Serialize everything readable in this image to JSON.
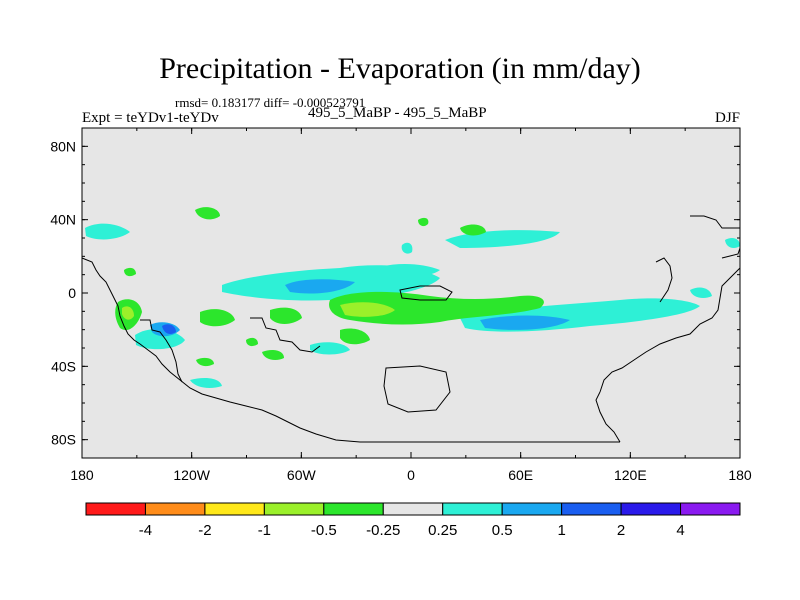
{
  "title": "Precipitation - Evaporation (in mm/day)",
  "stats": "rmsd= 0.183177 diff= -0.000523791",
  "expt": "Expt = teYDv1-teYDv",
  "case": "495_5_MaBP - 495_5_MaBP",
  "season": "DJF",
  "map": {
    "background_color": "#e6e6e6",
    "lon_range": [
      -180,
      180
    ],
    "lat_range": [
      -90,
      90
    ]
  },
  "y_axis": {
    "ticks": [
      {
        "label": "80N",
        "lat": 80
      },
      {
        "label": "40N",
        "lat": 40
      },
      {
        "label": "0",
        "lat": 0
      },
      {
        "label": "40S",
        "lat": -40
      },
      {
        "label": "80S",
        "lat": -80
      }
    ]
  },
  "x_axis": {
    "ticks": [
      {
        "label": "180",
        "lon": -180
      },
      {
        "label": "120W",
        "lon": -120
      },
      {
        "label": "60W",
        "lon": -60
      },
      {
        "label": "0",
        "lon": 0
      },
      {
        "label": "60E",
        "lon": 60
      },
      {
        "label": "120E",
        "lon": 120
      },
      {
        "label": "180",
        "lon": 180
      }
    ]
  },
  "colorbar": {
    "colors": [
      "#ff1a1a",
      "#ff8c1a",
      "#ffe81a",
      "#9bf02a",
      "#2ce62c",
      "#e6e6e6",
      "#2ef0d6",
      "#1aa8f0",
      "#1a5ef0",
      "#2a1aea",
      "#8a1af0"
    ],
    "labels": [
      "-4",
      "-2",
      "-1",
      "-0.5",
      "-0.25",
      "0.25",
      "0.5",
      "1",
      "2",
      "4"
    ]
  }
}
